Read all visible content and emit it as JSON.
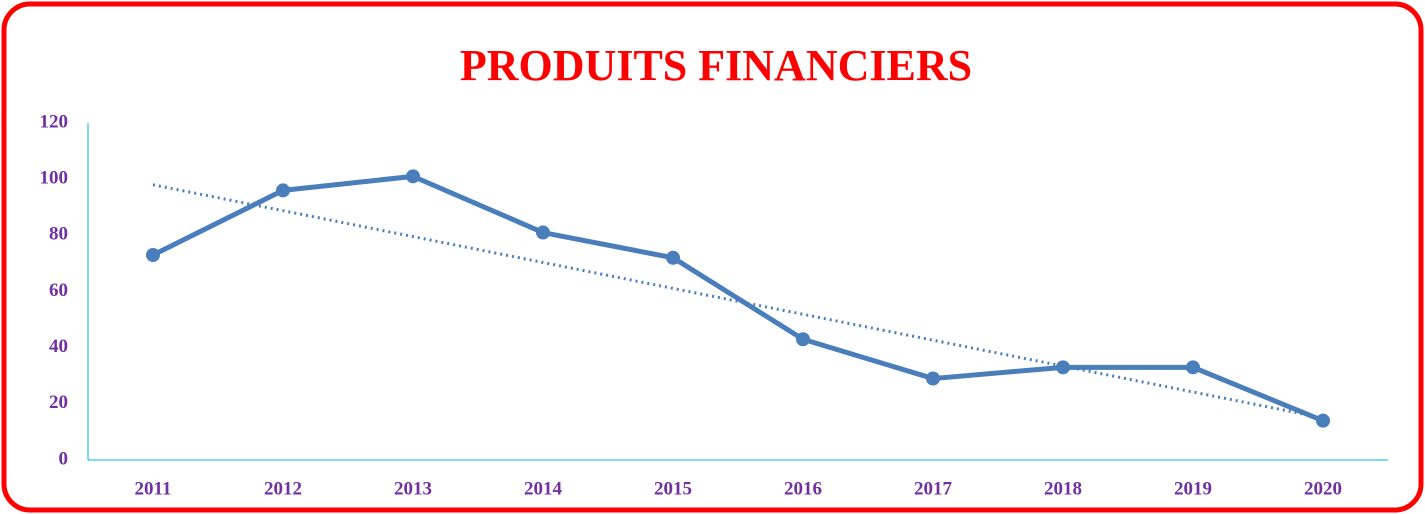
{
  "chart_data": {
    "type": "line",
    "title": "PRODUITS FINANCIERS",
    "categories": [
      "2011",
      "2012",
      "2013",
      "2014",
      "2015",
      "2016",
      "2017",
      "2018",
      "2019",
      "2020"
    ],
    "series": [
      {
        "color": "#4a7ebb",
        "values": [
          73,
          96,
          101,
          81,
          72,
          43,
          29,
          33,
          33,
          14
        ]
      }
    ],
    "trendline": {
      "color": "#4a7ebb",
      "values": [
        98,
        15
      ]
    },
    "ylim": [
      0,
      120
    ],
    "yticks": [
      0,
      20,
      40,
      60,
      80,
      100,
      120
    ],
    "grid": true,
    "grid_color": "#00b0f0"
  }
}
